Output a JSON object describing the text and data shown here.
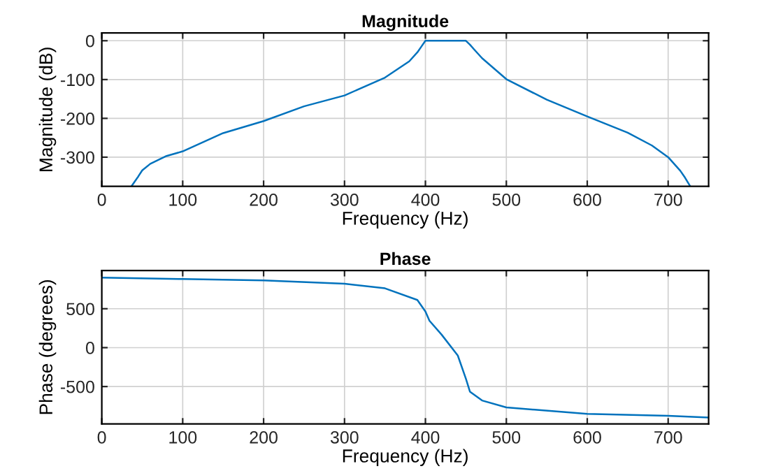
{
  "chart_data": [
    {
      "type": "line",
      "title": "Magnitude",
      "xlabel": "Frequency (Hz)",
      "ylabel": "Magnitude (dB)",
      "xlim": [
        0,
        750
      ],
      "ylim": [
        -375,
        20
      ],
      "xticks": [
        0,
        100,
        200,
        300,
        400,
        500,
        600,
        700
      ],
      "yticks": [
        -300,
        -200,
        -100,
        0
      ],
      "grid": true,
      "series": [
        {
          "color": "#0072bd",
          "x": [
            37,
            40,
            45,
            50,
            60,
            80,
            100,
            150,
            200,
            250,
            300,
            350,
            380,
            390,
            395,
            400,
            450,
            455,
            460,
            470,
            500,
            550,
            600,
            650,
            680,
            700,
            715,
            720,
            727
          ],
          "values": [
            -374,
            -365,
            -350,
            -334,
            -317,
            -297,
            -285,
            -238,
            -207,
            -169,
            -141,
            -95,
            -53,
            -30,
            -15,
            0,
            0,
            -10,
            -22,
            -45,
            -99,
            -152,
            -195,
            -237,
            -270,
            -300,
            -335,
            -350,
            -374
          ]
        }
      ]
    },
    {
      "type": "line",
      "title": "Phase",
      "xlabel": "Frequency (Hz)",
      "ylabel": "Phase (degrees)",
      "xlim": [
        0,
        750
      ],
      "ylim": [
        -980,
        990
      ],
      "xticks": [
        0,
        100,
        200,
        300,
        400,
        500,
        600,
        700
      ],
      "yticks": [
        -500,
        0,
        500
      ],
      "grid": true,
      "series": [
        {
          "color": "#0072bd",
          "x": [
            0,
            100,
            200,
            300,
            350,
            390,
            400,
            405,
            420,
            440,
            450,
            455,
            470,
            500,
            600,
            700,
            750
          ],
          "values": [
            899,
            881,
            863,
            821,
            762,
            613,
            464,
            345,
            167,
            -101,
            -399,
            -565,
            -679,
            -768,
            -851,
            -875,
            -899
          ]
        }
      ]
    }
  ]
}
